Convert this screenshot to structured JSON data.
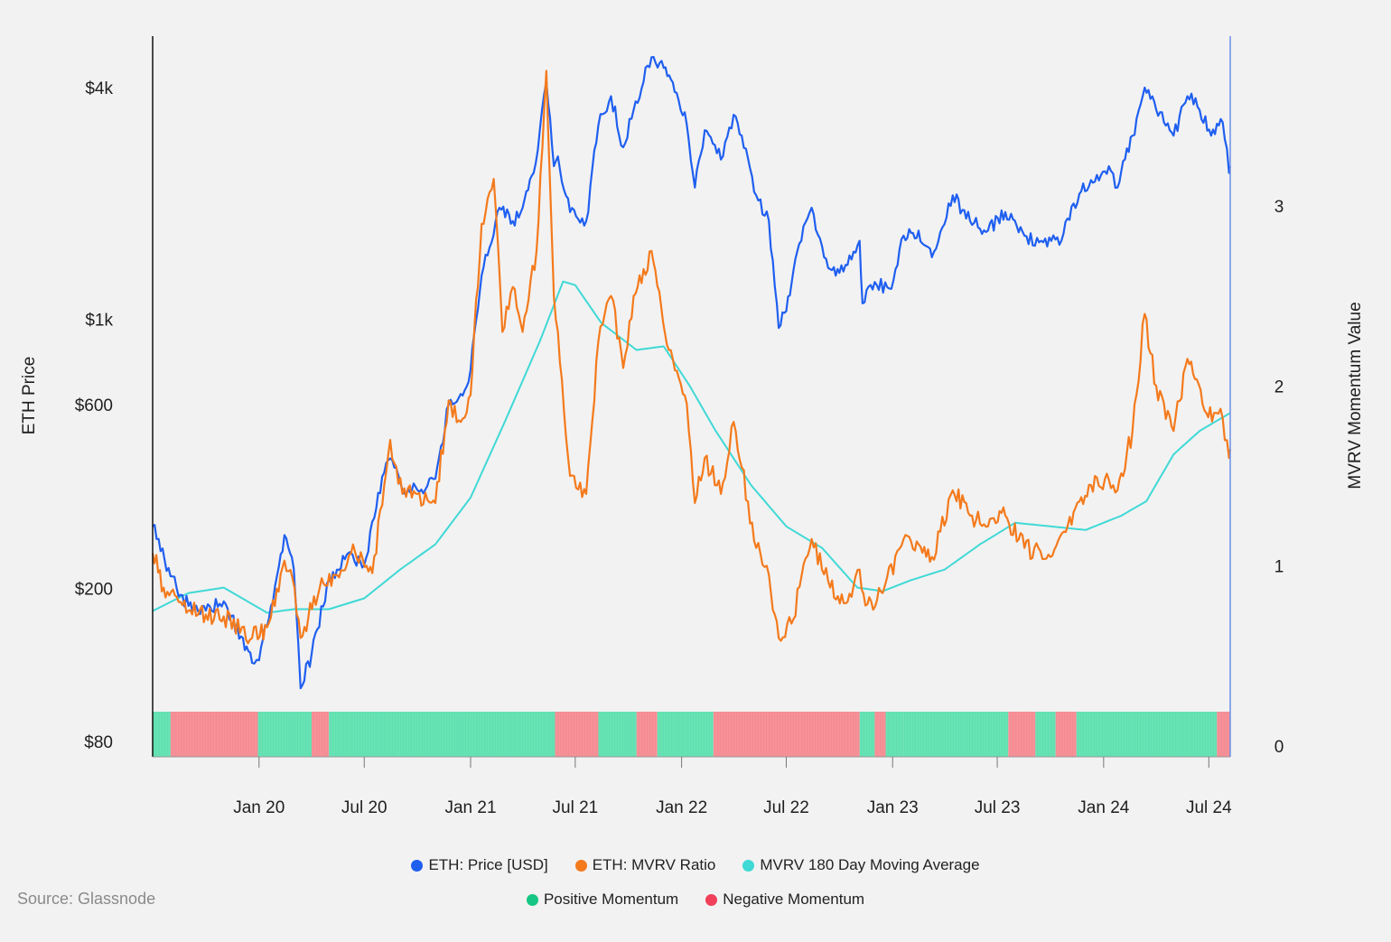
{
  "source": "Source: Glassnode",
  "colors": {
    "price": "#1f5ff0",
    "mvrv": "#f47a1c",
    "ma": "#3fd9d6",
    "positive": "#5fe0b0",
    "negative": "#f58a92"
  },
  "chart_data": {
    "type": "line",
    "x_ticks": [
      "Jan 20",
      "Jul 20",
      "Jan 21",
      "Jul 21",
      "Jan 22",
      "Jul 22",
      "Jan 23",
      "Jul 23",
      "Jan 24",
      "Jul 24"
    ],
    "xlim": [
      "2019-07-01",
      "2024-08-07"
    ],
    "left_axis": {
      "label": "ETH Price",
      "scale": "log",
      "ticks": [
        "$4k",
        "$1k",
        "$600",
        "$200",
        "$80"
      ],
      "tick_values": [
        4000,
        1000,
        600,
        200,
        80
      ]
    },
    "right_axis": {
      "label": "MVRV Momentum Value",
      "ticks": [
        "0",
        "1",
        "2",
        "3"
      ],
      "tick_values": [
        0,
        1,
        2,
        3
      ],
      "ylim": [
        0,
        3.5
      ]
    },
    "legend": [
      {
        "key": "price",
        "label": "ETH: Price [USD]"
      },
      {
        "key": "mvrv",
        "label": "ETH: MVRV Ratio"
      },
      {
        "key": "ma",
        "label": "MVRV 180 Day Moving Average"
      }
    ],
    "legend_momentum": [
      {
        "key": "positive",
        "label": "Positive Momentum"
      },
      {
        "key": "negative",
        "label": "Negative Momentum"
      }
    ],
    "series": [
      {
        "key": "price",
        "axis": "left",
        "points": [
          [
            "2019-07-01",
            290
          ],
          [
            "2019-08-01",
            215
          ],
          [
            "2019-09-01",
            180
          ],
          [
            "2019-10-01",
            175
          ],
          [
            "2019-11-01",
            185
          ],
          [
            "2019-12-01",
            150
          ],
          [
            "2019-12-20",
            128
          ],
          [
            "2020-01-01",
            130
          ],
          [
            "2020-02-01",
            215
          ],
          [
            "2020-02-14",
            275
          ],
          [
            "2020-03-01",
            225
          ],
          [
            "2020-03-13",
            110
          ],
          [
            "2020-04-01",
            135
          ],
          [
            "2020-05-01",
            210
          ],
          [
            "2020-06-01",
            245
          ],
          [
            "2020-07-01",
            230
          ],
          [
            "2020-08-01",
            390
          ],
          [
            "2020-08-15",
            435
          ],
          [
            "2020-09-05",
            360
          ],
          [
            "2020-10-01",
            360
          ],
          [
            "2020-11-01",
            385
          ],
          [
            "2020-11-24",
            600
          ],
          [
            "2020-12-15",
            640
          ],
          [
            "2021-01-01",
            740
          ],
          [
            "2021-01-20",
            1300
          ],
          [
            "2021-02-20",
            1950
          ],
          [
            "2021-03-15",
            1800
          ],
          [
            "2021-04-01",
            1950
          ],
          [
            "2021-04-20",
            2400
          ],
          [
            "2021-05-12",
            4150
          ],
          [
            "2021-05-25",
            2500
          ],
          [
            "2021-06-01",
            2650
          ],
          [
            "2021-06-22",
            1900
          ],
          [
            "2021-07-20",
            1800
          ],
          [
            "2021-08-10",
            3200
          ],
          [
            "2021-09-01",
            3800
          ],
          [
            "2021-09-22",
            2800
          ],
          [
            "2021-10-10",
            3500
          ],
          [
            "2021-11-10",
            4800
          ],
          [
            "2021-12-01",
            4500
          ],
          [
            "2021-12-20",
            3900
          ],
          [
            "2022-01-10",
            3200
          ],
          [
            "2022-01-24",
            2200
          ],
          [
            "2022-02-10",
            3100
          ],
          [
            "2022-03-10",
            2600
          ],
          [
            "2022-04-01",
            3400
          ],
          [
            "2022-04-15",
            3000
          ],
          [
            "2022-05-10",
            2100
          ],
          [
            "2022-06-01",
            1800
          ],
          [
            "2022-06-18",
            950
          ],
          [
            "2022-07-01",
            1050
          ],
          [
            "2022-07-20",
            1500
          ],
          [
            "2022-08-14",
            1950
          ],
          [
            "2022-09-01",
            1550
          ],
          [
            "2022-09-15",
            1350
          ],
          [
            "2022-10-01",
            1320
          ],
          [
            "2022-11-05",
            1600
          ],
          [
            "2022-11-10",
            1100
          ],
          [
            "2022-12-01",
            1250
          ],
          [
            "2022-12-30",
            1200
          ],
          [
            "2023-01-20",
            1650
          ],
          [
            "2023-02-15",
            1700
          ],
          [
            "2023-03-10",
            1450
          ],
          [
            "2023-04-15",
            2100
          ],
          [
            "2023-05-15",
            1800
          ],
          [
            "2023-06-15",
            1700
          ],
          [
            "2023-07-15",
            1900
          ],
          [
            "2023-08-17",
            1650
          ],
          [
            "2023-09-15",
            1600
          ],
          [
            "2023-10-20",
            1600
          ],
          [
            "2023-11-10",
            2000
          ],
          [
            "2023-12-10",
            2300
          ],
          [
            "2024-01-10",
            2500
          ],
          [
            "2024-01-25",
            2200
          ],
          [
            "2024-02-20",
            3000
          ],
          [
            "2024-03-12",
            4000
          ],
          [
            "2024-04-01",
            3500
          ],
          [
            "2024-05-01",
            3000
          ],
          [
            "2024-05-25",
            3800
          ],
          [
            "2024-06-15",
            3500
          ],
          [
            "2024-07-05",
            3000
          ],
          [
            "2024-07-25",
            3250
          ],
          [
            "2024-08-05",
            2400
          ],
          [
            "2024-08-07",
            2500
          ]
        ]
      },
      {
        "key": "mvrv",
        "axis": "right",
        "points": [
          [
            "2019-07-01",
            1.07
          ],
          [
            "2019-07-20",
            0.88
          ],
          [
            "2019-08-15",
            0.8
          ],
          [
            "2019-10-01",
            0.73
          ],
          [
            "2019-11-01",
            0.72
          ],
          [
            "2019-12-20",
            0.6
          ],
          [
            "2020-01-15",
            0.66
          ],
          [
            "2020-02-14",
            1.03
          ],
          [
            "2020-02-28",
            0.93
          ],
          [
            "2020-03-13",
            0.6
          ],
          [
            "2020-04-15",
            0.88
          ],
          [
            "2020-05-15",
            0.95
          ],
          [
            "2020-06-15",
            1.08
          ],
          [
            "2020-07-15",
            0.96
          ],
          [
            "2020-08-15",
            1.7
          ],
          [
            "2020-09-05",
            1.4
          ],
          [
            "2020-10-01",
            1.4
          ],
          [
            "2020-11-01",
            1.35
          ],
          [
            "2020-11-24",
            1.92
          ],
          [
            "2020-12-15",
            1.8
          ],
          [
            "2021-01-01",
            1.95
          ],
          [
            "2021-01-20",
            2.9
          ],
          [
            "2021-02-10",
            3.15
          ],
          [
            "2021-02-25",
            2.3
          ],
          [
            "2021-03-15",
            2.55
          ],
          [
            "2021-04-01",
            2.3
          ],
          [
            "2021-04-25",
            2.75
          ],
          [
            "2021-05-12",
            3.75
          ],
          [
            "2021-05-25",
            2.5
          ],
          [
            "2021-06-01",
            2.3
          ],
          [
            "2021-06-22",
            1.5
          ],
          [
            "2021-07-20",
            1.4
          ],
          [
            "2021-08-10",
            2.25
          ],
          [
            "2021-09-01",
            2.5
          ],
          [
            "2021-09-22",
            2.1
          ],
          [
            "2021-10-10",
            2.5
          ],
          [
            "2021-11-10",
            2.75
          ],
          [
            "2021-12-10",
            2.2
          ],
          [
            "2022-01-10",
            1.9
          ],
          [
            "2022-01-24",
            1.35
          ],
          [
            "2022-02-10",
            1.6
          ],
          [
            "2022-03-10",
            1.4
          ],
          [
            "2022-04-01",
            1.8
          ],
          [
            "2022-05-10",
            1.1
          ],
          [
            "2022-06-01",
            0.95
          ],
          [
            "2022-06-18",
            0.6
          ],
          [
            "2022-07-10",
            0.68
          ],
          [
            "2022-08-14",
            1.15
          ],
          [
            "2022-09-15",
            0.88
          ],
          [
            "2022-10-15",
            0.8
          ],
          [
            "2022-11-05",
            0.98
          ],
          [
            "2022-11-15",
            0.78
          ],
          [
            "2022-12-15",
            0.85
          ],
          [
            "2023-01-20",
            1.15
          ],
          [
            "2023-02-15",
            1.12
          ],
          [
            "2023-03-10",
            1.05
          ],
          [
            "2023-04-15",
            1.42
          ],
          [
            "2023-05-15",
            1.28
          ],
          [
            "2023-06-15",
            1.22
          ],
          [
            "2023-07-15",
            1.28
          ],
          [
            "2023-08-17",
            1.1
          ],
          [
            "2023-10-01",
            1.05
          ],
          [
            "2023-11-10",
            1.3
          ],
          [
            "2023-12-10",
            1.45
          ],
          [
            "2024-01-10",
            1.48
          ],
          [
            "2024-01-25",
            1.42
          ],
          [
            "2024-02-20",
            1.75
          ],
          [
            "2024-03-12",
            2.4
          ],
          [
            "2024-04-01",
            2.0
          ],
          [
            "2024-05-01",
            1.75
          ],
          [
            "2024-05-25",
            2.15
          ],
          [
            "2024-06-20",
            1.9
          ],
          [
            "2024-07-10",
            1.85
          ],
          [
            "2024-07-25",
            1.82
          ],
          [
            "2024-08-05",
            1.6
          ],
          [
            "2024-08-07",
            1.65
          ]
        ]
      },
      {
        "key": "ma",
        "axis": "right",
        "points": [
          [
            "2019-07-01",
            0.75
          ],
          [
            "2019-09-01",
            0.85
          ],
          [
            "2019-11-01",
            0.88
          ],
          [
            "2020-01-15",
            0.74
          ],
          [
            "2020-03-01",
            0.76
          ],
          [
            "2020-05-01",
            0.76
          ],
          [
            "2020-07-01",
            0.82
          ],
          [
            "2020-09-01",
            0.98
          ],
          [
            "2020-11-01",
            1.12
          ],
          [
            "2021-01-01",
            1.38
          ],
          [
            "2021-03-01",
            1.8
          ],
          [
            "2021-05-01",
            2.25
          ],
          [
            "2021-06-10",
            2.58
          ],
          [
            "2021-07-01",
            2.56
          ],
          [
            "2021-08-15",
            2.35
          ],
          [
            "2021-10-15",
            2.2
          ],
          [
            "2021-12-01",
            2.22
          ],
          [
            "2022-01-15",
            2.0
          ],
          [
            "2022-03-01",
            1.75
          ],
          [
            "2022-05-01",
            1.45
          ],
          [
            "2022-07-01",
            1.22
          ],
          [
            "2022-09-01",
            1.1
          ],
          [
            "2022-11-01",
            0.88
          ],
          [
            "2022-12-15",
            0.86
          ],
          [
            "2023-02-01",
            0.92
          ],
          [
            "2023-04-01",
            0.98
          ],
          [
            "2023-06-01",
            1.12
          ],
          [
            "2023-08-01",
            1.24
          ],
          [
            "2023-10-01",
            1.22
          ],
          [
            "2023-12-01",
            1.2
          ],
          [
            "2024-02-01",
            1.28
          ],
          [
            "2024-03-15",
            1.36
          ],
          [
            "2024-05-01",
            1.62
          ],
          [
            "2024-06-15",
            1.75
          ],
          [
            "2024-08-07",
            1.85
          ]
        ]
      }
    ],
    "momentum_periods": [
      [
        "2019-07-01",
        "2019-08-01",
        "positive"
      ],
      [
        "2019-08-01",
        "2019-12-30",
        "negative"
      ],
      [
        "2019-12-30",
        "2020-04-01",
        "positive"
      ],
      [
        "2020-04-01",
        "2020-05-01",
        "negative"
      ],
      [
        "2020-05-01",
        "2021-05-27",
        "positive"
      ],
      [
        "2021-05-27",
        "2021-08-10",
        "negative"
      ],
      [
        "2021-08-10",
        "2021-10-15",
        "positive"
      ],
      [
        "2021-10-15",
        "2021-11-20",
        "negative"
      ],
      [
        "2021-11-20",
        "2022-02-25",
        "positive"
      ],
      [
        "2022-02-25",
        "2022-11-05",
        "negative"
      ],
      [
        "2022-11-05",
        "2022-12-01",
        "positive"
      ],
      [
        "2022-12-01",
        "2022-12-20",
        "negative"
      ],
      [
        "2022-12-20",
        "2023-01-20",
        "positive"
      ],
      [
        "2023-01-20",
        "2023-07-20",
        "positive"
      ],
      [
        "2023-07-20",
        "2023-09-05",
        "negative"
      ],
      [
        "2023-09-05",
        "2023-10-10",
        "positive"
      ],
      [
        "2023-10-10",
        "2023-11-15",
        "negative"
      ],
      [
        "2023-11-15",
        "2024-07-15",
        "positive"
      ],
      [
        "2024-07-15",
        "2024-08-07",
        "negative"
      ]
    ]
  }
}
